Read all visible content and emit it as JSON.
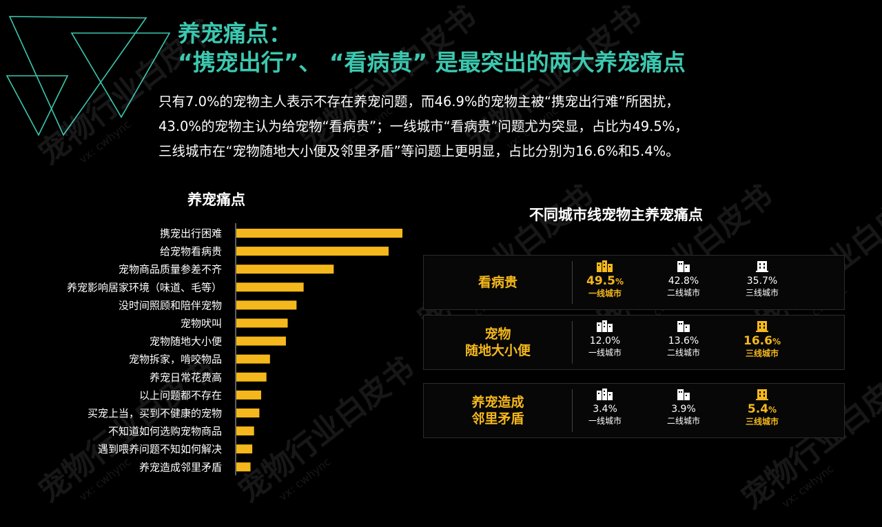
{
  "header": {
    "title_line1": "养宠痛点：",
    "title_line2": "“携宠出行”、 “看病贵” 是最突出的两大养宠痛点"
  },
  "description": [
    "只有7.0%的宠物主人表示不存在养宠问题，而46.9%的宠物主被“携宠出行难”所困扰，",
    "43.0%的宠物主认为给宠物“看病贵”；一线城市“看病贵”问题尤为突显，占比为49.5%，",
    "三线城市在“宠物随地大小便及邻里矛盾”等问题上更明显，占比分别为16.6%和5.4%。"
  ],
  "watermark": {
    "text": "宠物行业白皮书",
    "sub": "vx: cwhync"
  },
  "colors": {
    "accent": "#f5b81c",
    "title": "#3cc8b0",
    "bar": "#f5b81c"
  },
  "chart_data": [
    {
      "type": "bar",
      "orientation": "horizontal",
      "title": "养宠痛点",
      "categories": [
        "携宠出行困难",
        "给宠物看病贵",
        "宠物商品质量参差不齐",
        "养宠影响居家环境（味道、毛等）",
        "没时间照顾和陪伴宠物",
        "宠物吠叫",
        "宠物随地大小便",
        "宠物拆家，啃咬物品",
        "养宠日常花费高",
        "以上问题都不存在",
        "买宠上当，买到不健康的宠物",
        "不知道如何选购宠物商品",
        "遇到喂养问题不知如何解决",
        "养宠造成邻里矛盾"
      ],
      "values": [
        46.9,
        43.0,
        27.5,
        19.0,
        17.0,
        14.5,
        14.0,
        9.5,
        8.5,
        7.0,
        6.5,
        5.0,
        4.5,
        4.0
      ],
      "xlim": [
        0,
        50
      ]
    },
    {
      "type": "table",
      "title": "不同城市线宠物主养宠痛点",
      "rows": [
        {
          "label": "看病贵",
          "highlight": 0,
          "cells": [
            {
              "value": "49.5",
              "unit": "%",
              "city": "一线城市",
              "icon": "city-tier1-icon"
            },
            {
              "value": "42.8",
              "unit": "%",
              "city": "二线城市",
              "icon": "city-tier2-icon"
            },
            {
              "value": "35.7",
              "unit": "%",
              "city": "三线城市",
              "icon": "city-tier3-icon"
            }
          ]
        },
        {
          "label": "宠物\n随地大小便",
          "highlight": 2,
          "cells": [
            {
              "value": "12.0",
              "unit": "%",
              "city": "一线城市",
              "icon": "city-tier1-icon"
            },
            {
              "value": "13.6",
              "unit": "%",
              "city": "二线城市",
              "icon": "city-tier2-icon"
            },
            {
              "value": "16.6",
              "unit": "%",
              "city": "三线城市",
              "icon": "city-tier3-icon"
            }
          ]
        },
        {
          "label": "养宠造成\n邻里矛盾",
          "highlight": 2,
          "cells": [
            {
              "value": "3.4",
              "unit": "%",
              "city": "一线城市",
              "icon": "city-tier1-icon"
            },
            {
              "value": "3.9",
              "unit": "%",
              "city": "二线城市",
              "icon": "city-tier2-icon"
            },
            {
              "value": "5.4",
              "unit": "%",
              "city": "三线城市",
              "icon": "city-tier3-icon"
            }
          ]
        }
      ]
    }
  ]
}
